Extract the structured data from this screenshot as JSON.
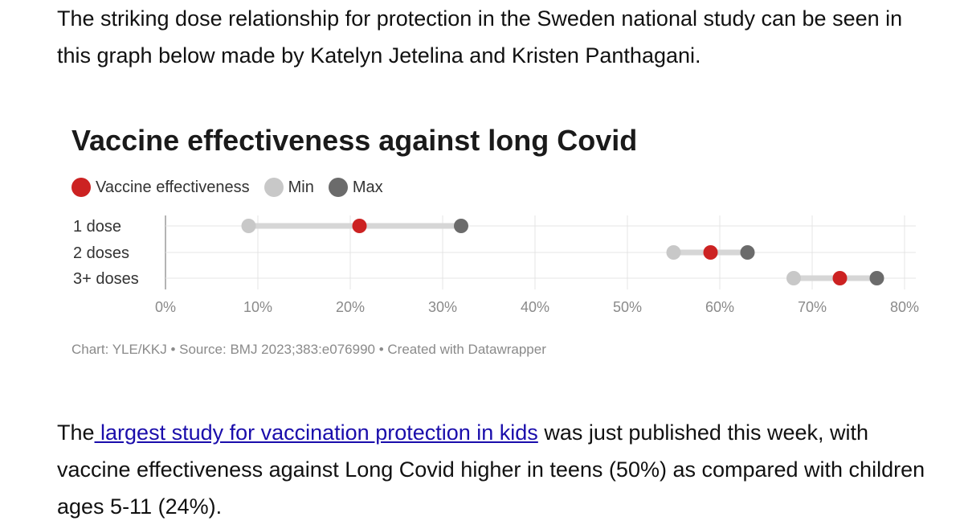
{
  "intro_text": "The striking dose relationship for protection in the Sweden national study can be seen in this graph below made by Katelyn Jetelina and Kristen Panthagani.",
  "outro": {
    "prefix": "The",
    "link_text": " largest study for vaccination protection in kids",
    "suffix": " was just published this week, with vaccine effectiveness against Long Covid higher in teens (50%) as compared with children ages 5-11 (24%)."
  },
  "chart_data": {
    "type": "dot-range",
    "title": "Vaccine effectiveness against long Covid",
    "legend": [
      {
        "label": "Vaccine effectiveness",
        "color": "#cc2222"
      },
      {
        "label": "Min",
        "color": "#c8c8c8"
      },
      {
        "label": "Max",
        "color": "#6b6b6b"
      }
    ],
    "categories": [
      "1 dose",
      "2 doses",
      "3+ doses"
    ],
    "series": [
      {
        "name": "Vaccine effectiveness",
        "values": [
          21,
          59,
          73
        ]
      },
      {
        "name": "Min",
        "values": [
          9,
          55,
          68
        ]
      },
      {
        "name": "Max",
        "values": [
          32,
          63,
          77
        ]
      }
    ],
    "xlim": [
      0,
      80
    ],
    "x_ticks": [
      "0%",
      "10%",
      "20%",
      "30%",
      "40%",
      "50%",
      "60%",
      "70%",
      "80%"
    ],
    "grid": true
  },
  "credit": "Chart: YLE/KKJ • Source: BMJ 2023;383:e076990 • Created with Datawrapper"
}
